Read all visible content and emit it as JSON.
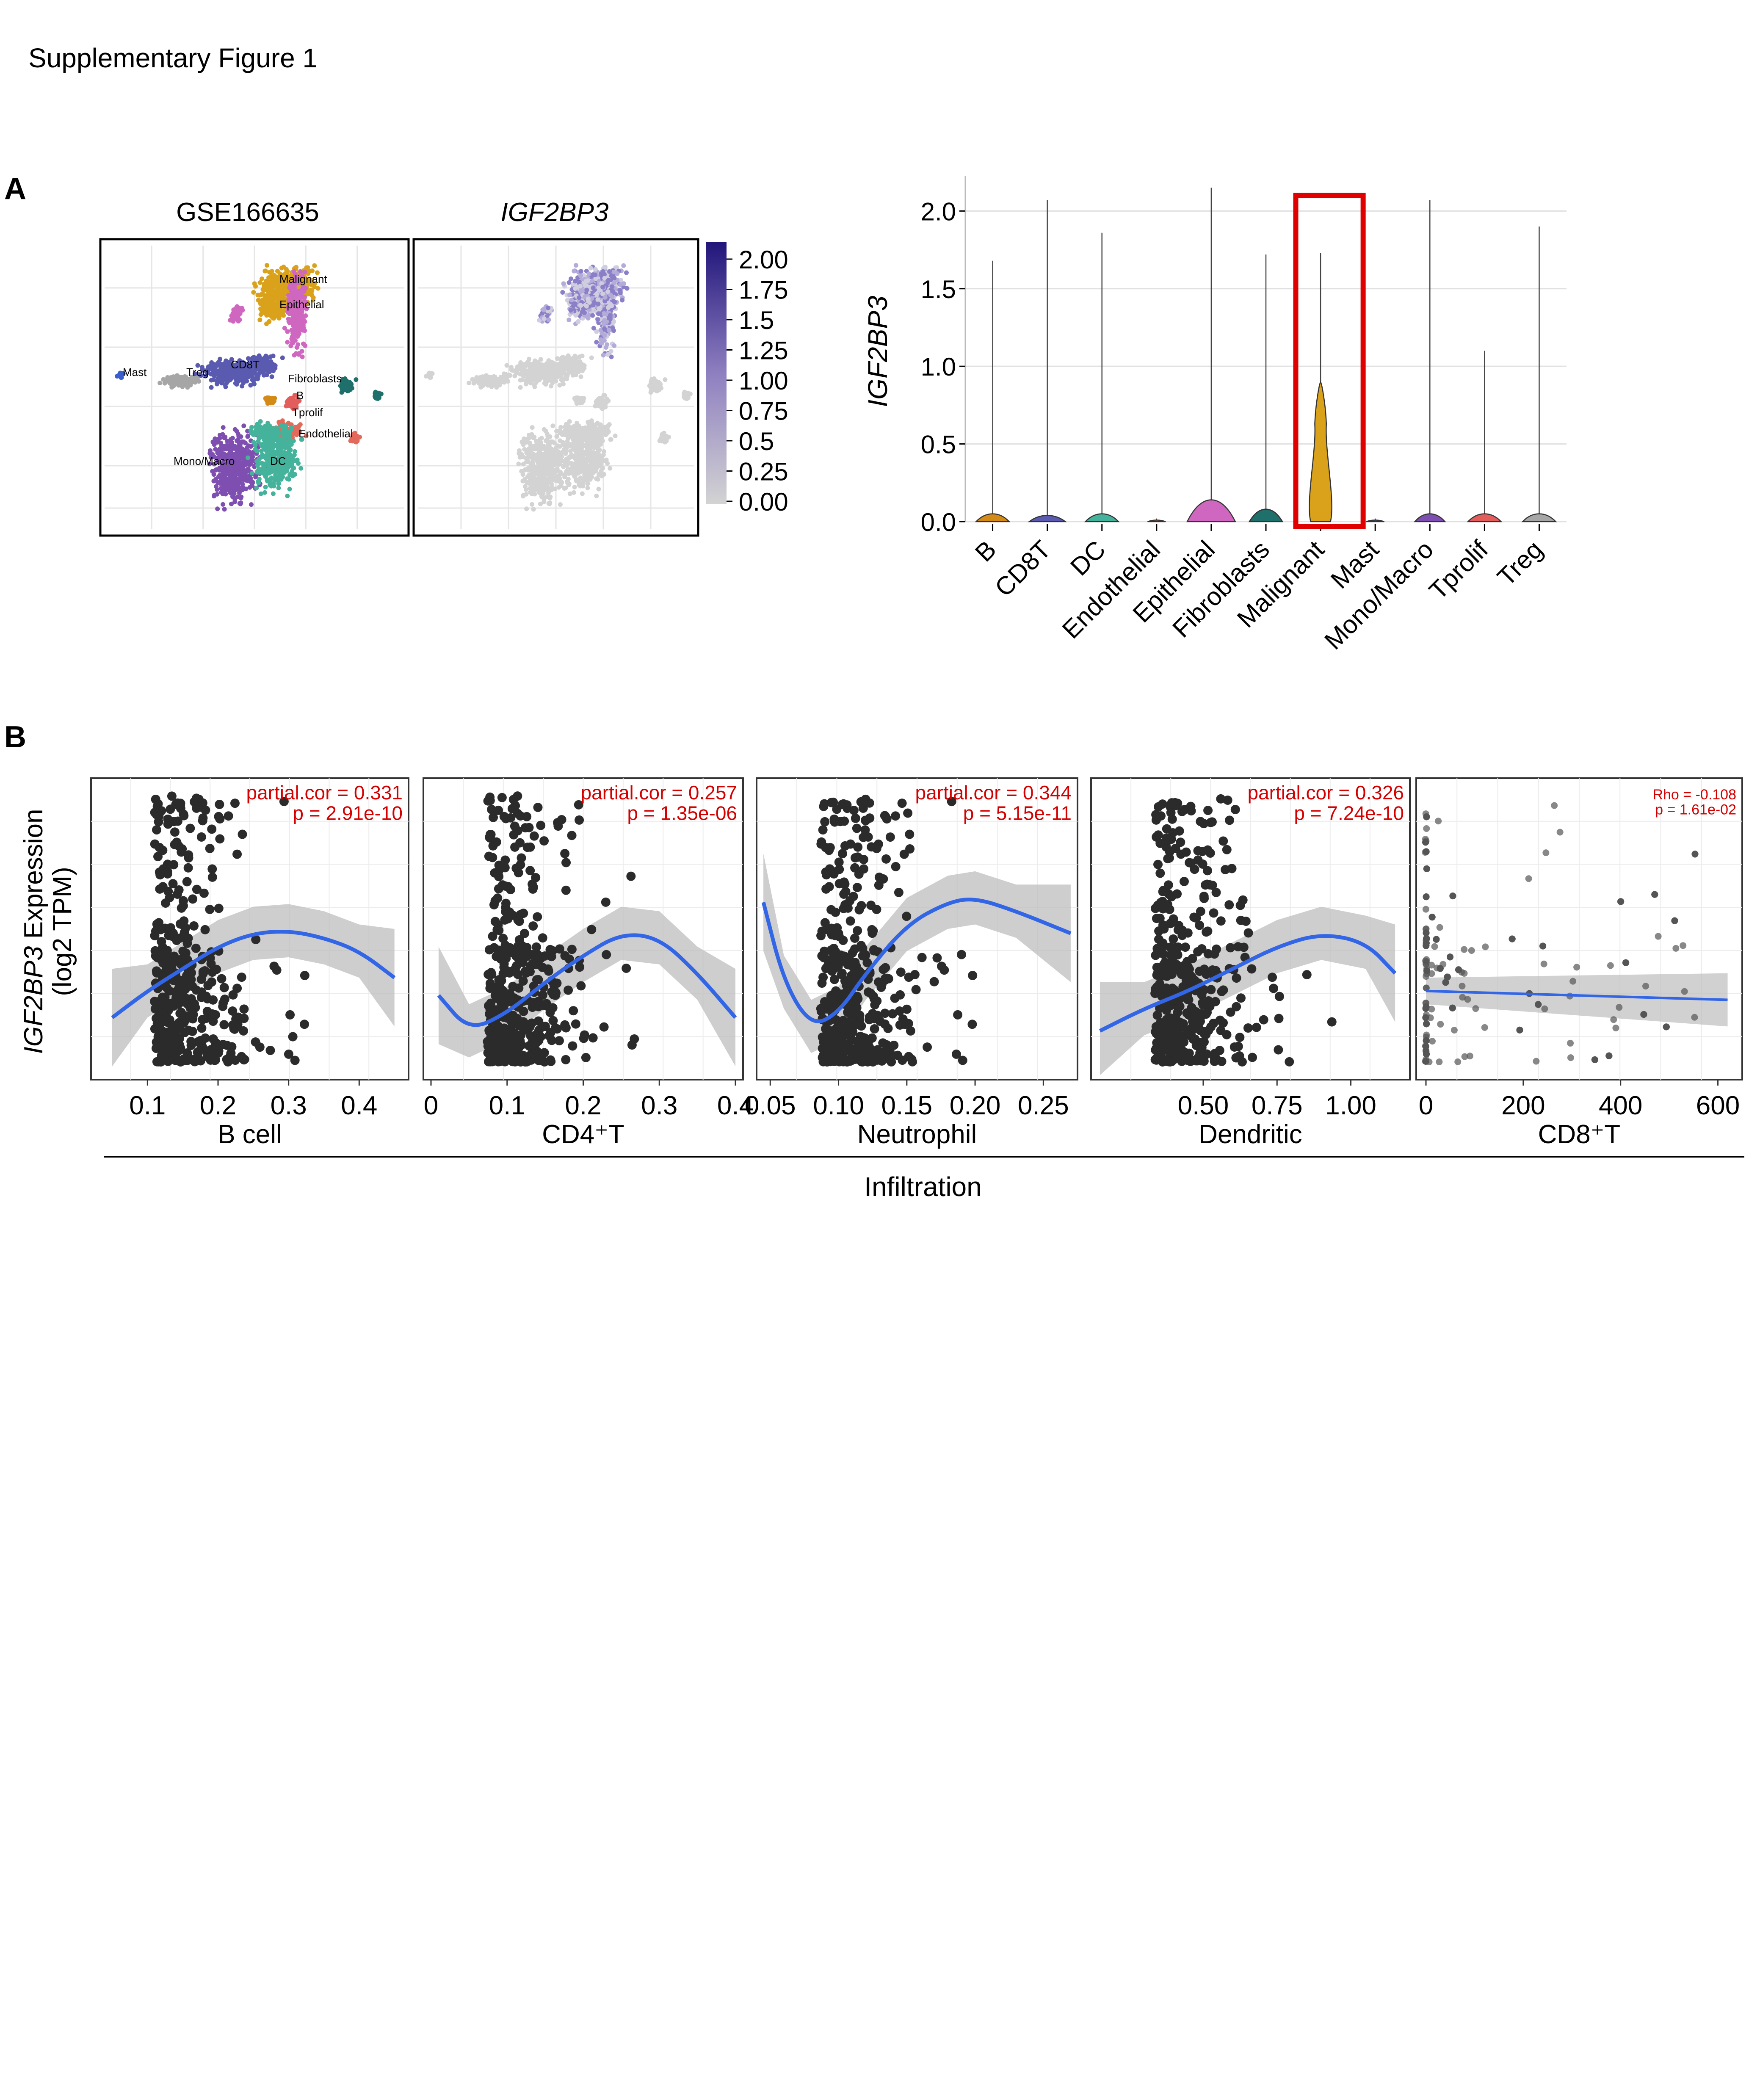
{
  "figure_title": "Supplementary Figure 1",
  "panel_a_letter": "A",
  "panel_b_letter": "B",
  "colors": {
    "B": "#d48a16",
    "CD8T": "#5a5ab0",
    "DC": "#45b39c",
    "Endothelial": "#e26a5c",
    "Epithelial": "#cf67c0",
    "Fibroblasts": "#1f6f6a",
    "Malignant": "#d9a21a",
    "Mast": "#3a5fcd",
    "Mono/Macro": "#7e4fb0",
    "Tprolif": "#e35d5d",
    "Treg": "#a6a6a6",
    "scatter_points": "#2b2b2b",
    "smooth_line": "#3366e6",
    "ci_band": "#bdbdbd",
    "stat_text": "#d40000",
    "highlight_box": "#e00000",
    "expr_low": "#d3d3d3",
    "expr_high": "#21157a"
  },
  "umap": {
    "panel1_title": "GSE166635",
    "panel2_title": "IGF2BP3",
    "cluster_labels": [
      "Malignant",
      "Epithelial",
      "Mast",
      "Treg",
      "CD8T",
      "Fibroblasts",
      "B",
      "Tprolif",
      "Endothelial",
      "Mono/Macro",
      "DC"
    ],
    "colorbar_ticks": [
      "2.00",
      "1.75",
      "1.5",
      "1.25",
      "1.00",
      "0.75",
      "0.5",
      "0.25",
      "0.00"
    ]
  },
  "chart_data": [
    {
      "type": "violin",
      "ylabel": "IGF2BP3",
      "ylim": [
        0,
        2.2
      ],
      "yticks": [
        "0.0",
        "0.5",
        "1.0",
        "1.5",
        "2.0"
      ],
      "categories": [
        "B",
        "CD8T",
        "DC",
        "Endothelial",
        "Epithelial",
        "Fibroblasts",
        "Malignant",
        "Mast",
        "Mono/Macro",
        "Tprolif",
        "Treg"
      ],
      "max_values": [
        1.68,
        2.07,
        1.86,
        0.02,
        2.15,
        1.72,
        1.73,
        0.02,
        2.07,
        1.1,
        1.9
      ],
      "body_height": [
        0.05,
        0.04,
        0.05,
        0.01,
        0.14,
        0.08,
        0.9,
        0.01,
        0.05,
        0.05,
        0.05
      ],
      "body_width": [
        0.55,
        0.6,
        0.55,
        0.3,
        0.8,
        0.55,
        0.55,
        0.3,
        0.5,
        0.55,
        0.55
      ],
      "highlight": "Malignant"
    },
    {
      "type": "scatter",
      "xlabel": "B cell",
      "x_ticks": [
        "0.1",
        "0.2",
        "0.3",
        "0.4"
      ],
      "xlim": [
        0.02,
        0.47
      ],
      "stat_line1": "partial.cor = 0.331",
      "stat_line2": "p = 2.91e-10",
      "smooth": [
        [
          0.05,
          0.9
        ],
        [
          0.1,
          1.2
        ],
        [
          0.15,
          1.45
        ],
        [
          0.2,
          1.7
        ],
        [
          0.25,
          1.85
        ],
        [
          0.3,
          1.88
        ],
        [
          0.35,
          1.8
        ],
        [
          0.4,
          1.65
        ],
        [
          0.45,
          1.35
        ]
      ]
    },
    {
      "type": "scatter",
      "xlabel": "CD4⁺T",
      "x_ticks": [
        "0",
        "0.1",
        "0.2",
        "0.3",
        "0.4"
      ],
      "xlim": [
        -0.01,
        0.41
      ],
      "stat_line1": "partial.cor = 0.257",
      "stat_line2": "p = 1.35e-06",
      "smooth": [
        [
          0.01,
          1.15
        ],
        [
          0.05,
          0.75
        ],
        [
          0.1,
          0.95
        ],
        [
          0.15,
          1.3
        ],
        [
          0.2,
          1.6
        ],
        [
          0.25,
          1.85
        ],
        [
          0.3,
          1.8
        ],
        [
          0.35,
          1.4
        ],
        [
          0.4,
          0.9
        ]
      ]
    },
    {
      "type": "scatter",
      "xlabel": "Neutrophil",
      "x_ticks": [
        "0.05",
        "0.10",
        "0.15",
        "0.20",
        "0.25"
      ],
      "xlim": [
        0.04,
        0.275
      ],
      "stat_line1": "partial.cor = 0.344",
      "stat_line2": "p = 5.15e-11",
      "smooth": [
        [
          0.045,
          2.2
        ],
        [
          0.06,
          1.3
        ],
        [
          0.08,
          0.8
        ],
        [
          0.1,
          0.95
        ],
        [
          0.12,
          1.4
        ],
        [
          0.15,
          1.95
        ],
        [
          0.18,
          2.2
        ],
        [
          0.2,
          2.25
        ],
        [
          0.23,
          2.1
        ],
        [
          0.27,
          1.85
        ]
      ]
    },
    {
      "type": "scatter",
      "xlabel": "Dendritic",
      "x_ticks": [
        "0.50",
        "0.75",
        "1.00"
      ],
      "xlim": [
        0.12,
        1.2
      ],
      "stat_line1": "partial.cor = 0.326",
      "stat_line2": "p = 7.24e-10",
      "smooth": [
        [
          0.15,
          0.75
        ],
        [
          0.3,
          1.0
        ],
        [
          0.45,
          1.2
        ],
        [
          0.6,
          1.45
        ],
        [
          0.75,
          1.7
        ],
        [
          0.9,
          1.85
        ],
        [
          1.05,
          1.75
        ],
        [
          1.15,
          1.4
        ]
      ]
    },
    {
      "type": "scatter",
      "xlabel": "CD8⁺T",
      "x_ticks": [
        "0",
        "200",
        "400",
        "600"
      ],
      "xlim": [
        -20,
        650
      ],
      "stat_line1": "Rho = -0.108",
      "stat_line2": "p = 1.61e-02",
      "smooth": [
        [
          0,
          1.2
        ],
        [
          620,
          1.1
        ]
      ]
    }
  ],
  "panel_b": {
    "ylabel_gene": "IGF2BP3",
    "ylabel_rest": " Expression",
    "ylabel_unit": "(log2 TPM)",
    "shared_xlabel": "Infiltration"
  }
}
